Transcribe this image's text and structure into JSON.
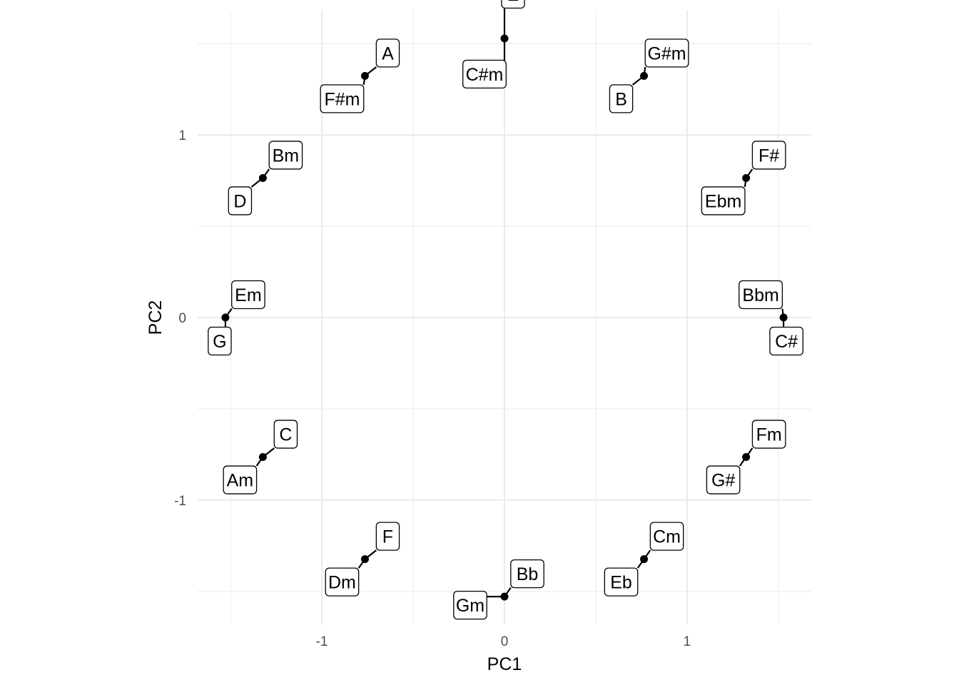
{
  "chart_data": {
    "type": "scatter",
    "xlabel": "PC1",
    "ylabel": "PC2",
    "xlim": [
      -1.68,
      1.68
    ],
    "ylim": [
      -1.68,
      1.68
    ],
    "x_ticks": [
      -1,
      0,
      1
    ],
    "y_ticks": [
      -1,
      0,
      1
    ],
    "grid": true,
    "points": [
      {
        "x": 0.0,
        "y": 1.528,
        "labels": [
          {
            "text": "E",
            "dx": 12,
            "dy": -62
          },
          {
            "text": "C#m",
            "dx": -28,
            "dy": 50
          }
        ]
      },
      {
        "x": 0.764,
        "y": 1.323,
        "labels": [
          {
            "text": "G#m",
            "dx": 32,
            "dy": -32
          },
          {
            "text": "B",
            "dx": -32,
            "dy": 32
          }
        ]
      },
      {
        "x": 1.323,
        "y": 0.764,
        "labels": [
          {
            "text": "F#",
            "dx": 32,
            "dy": -32
          },
          {
            "text": "Ebm",
            "dx": -32,
            "dy": 32
          }
        ]
      },
      {
        "x": 1.528,
        "y": 0.0,
        "labels": [
          {
            "text": "Bbm",
            "dx": -32,
            "dy": -32
          },
          {
            "text": "C#",
            "dx": 4,
            "dy": 33
          }
        ]
      },
      {
        "x": 1.323,
        "y": -0.764,
        "labels": [
          {
            "text": "Fm",
            "dx": 32,
            "dy": -32
          },
          {
            "text": "G#",
            "dx": -32,
            "dy": 32
          }
        ]
      },
      {
        "x": 0.764,
        "y": -1.323,
        "labels": [
          {
            "text": "Cm",
            "dx": 32,
            "dy": -32
          },
          {
            "text": "Eb",
            "dx": -32,
            "dy": 32
          }
        ]
      },
      {
        "x": 0.0,
        "y": -1.528,
        "labels": [
          {
            "text": "Bb",
            "dx": 32,
            "dy": -32
          },
          {
            "text": "Gm",
            "dx": -48,
            "dy": 12
          }
        ]
      },
      {
        "x": -0.764,
        "y": -1.323,
        "labels": [
          {
            "text": "F",
            "dx": 32,
            "dy": -32
          },
          {
            "text": "Dm",
            "dx": -32,
            "dy": 32
          }
        ]
      },
      {
        "x": -1.323,
        "y": -0.764,
        "labels": [
          {
            "text": "C",
            "dx": 32,
            "dy": -32
          },
          {
            "text": "Am",
            "dx": -32,
            "dy": 32
          }
        ]
      },
      {
        "x": -1.528,
        "y": 0.0,
        "labels": [
          {
            "text": "Em",
            "dx": 32,
            "dy": -32
          },
          {
            "text": "G",
            "dx": -8,
            "dy": 33
          }
        ]
      },
      {
        "x": -1.323,
        "y": 0.764,
        "labels": [
          {
            "text": "Bm",
            "dx": 32,
            "dy": -32
          },
          {
            "text": "D",
            "dx": -32,
            "dy": 32
          }
        ]
      },
      {
        "x": -0.764,
        "y": 1.323,
        "labels": [
          {
            "text": "A",
            "dx": 32,
            "dy": -32
          },
          {
            "text": "F#m",
            "dx": -32,
            "dy": 32
          }
        ]
      }
    ]
  }
}
